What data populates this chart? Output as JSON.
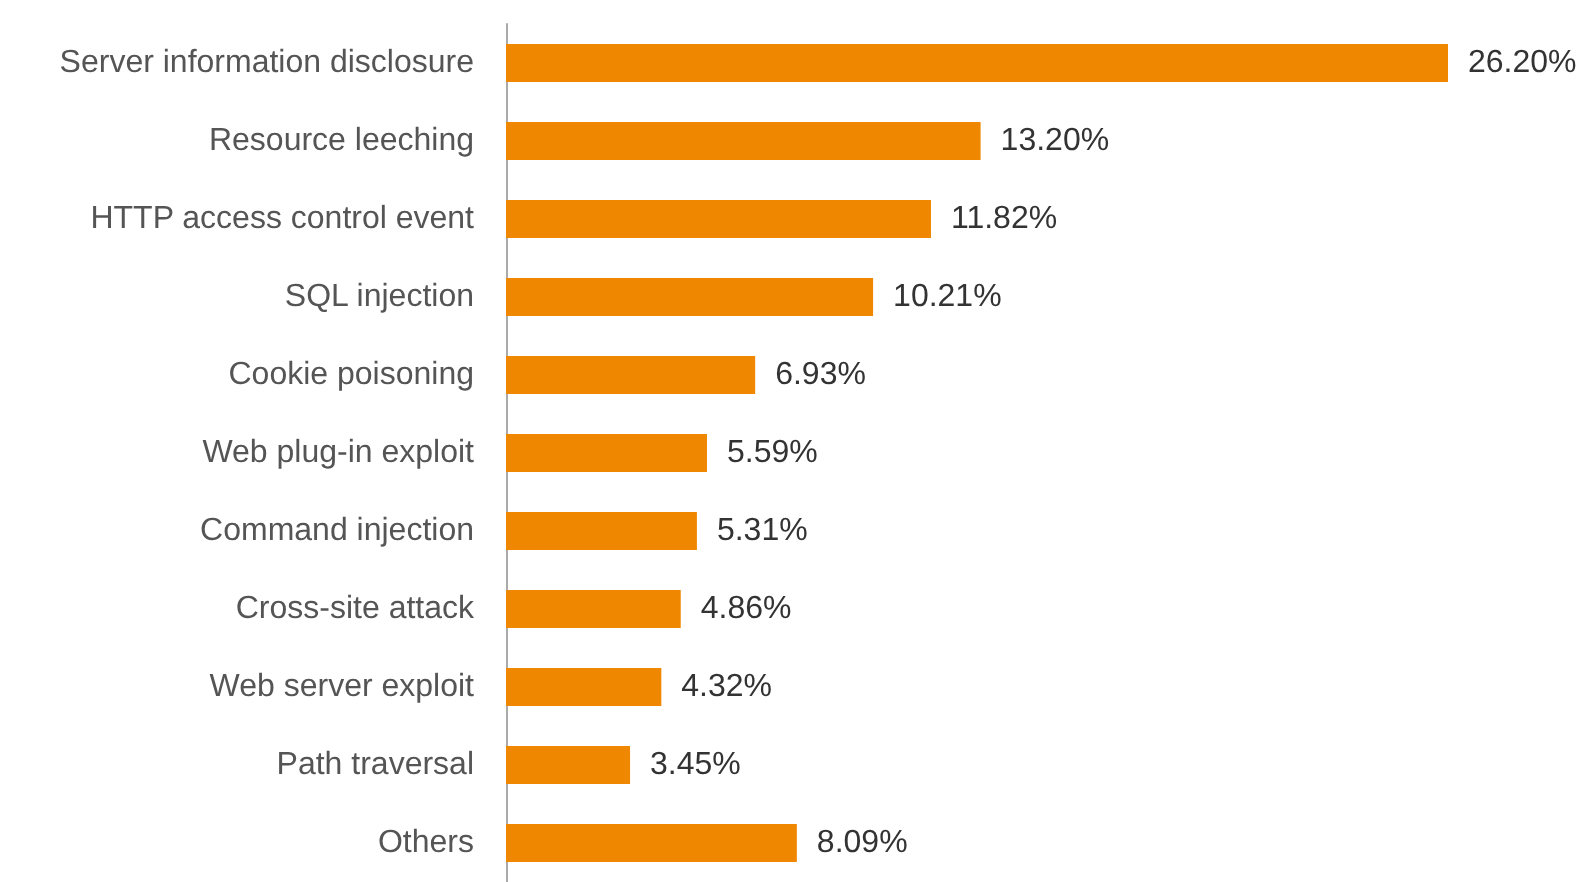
{
  "chart_data": {
    "type": "bar",
    "orientation": "horizontal",
    "categories": [
      "Server information disclosure",
      "Resource leeching",
      "HTTP access control event",
      "SQL injection",
      "Cookie poisoning",
      "Web plug-in exploit",
      "Command injection",
      "Cross-site attack",
      "Web server exploit",
      "Path traversal",
      "Others"
    ],
    "values": [
      26.2,
      13.2,
      11.82,
      10.21,
      6.93,
      5.59,
      5.31,
      4.86,
      4.32,
      3.45,
      8.09
    ],
    "value_labels": [
      "26.20%",
      "13.20%",
      "11.82%",
      "10.21%",
      "6.93%",
      "5.59%",
      "5.31%",
      "4.86%",
      "4.32%",
      "3.45%",
      "8.09%"
    ],
    "color": "#f08700"
  }
}
